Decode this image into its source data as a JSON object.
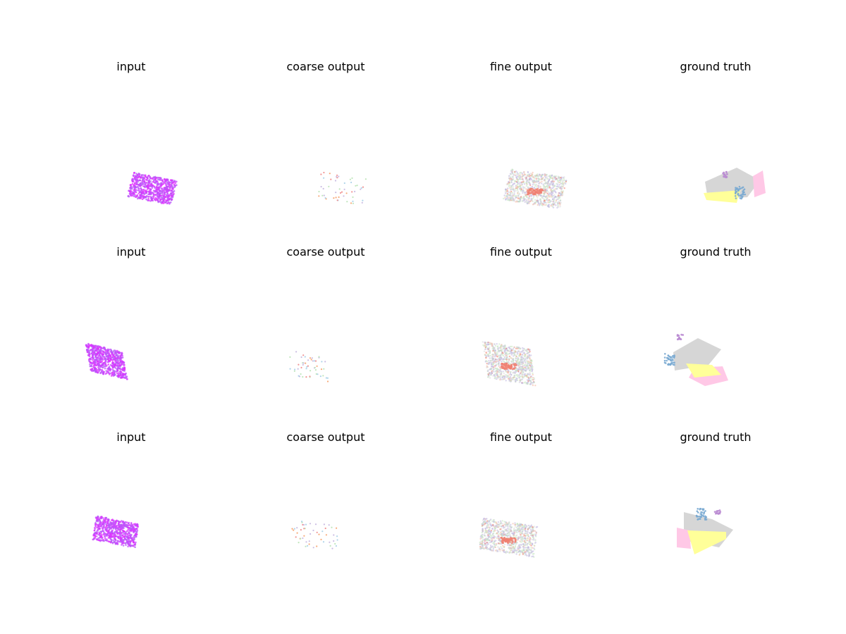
{
  "figure": {
    "rows": [
      {
        "panels": [
          {
            "title": "input",
            "kind": "input"
          },
          {
            "title": "coarse output",
            "kind": "coarse"
          },
          {
            "title": "fine output",
            "kind": "fine"
          },
          {
            "title": "ground truth",
            "kind": "truth"
          }
        ]
      },
      {
        "panels": [
          {
            "title": "input",
            "kind": "input"
          },
          {
            "title": "coarse output",
            "kind": "coarse"
          },
          {
            "title": "fine output",
            "kind": "fine"
          },
          {
            "title": "ground truth",
            "kind": "truth"
          }
        ]
      },
      {
        "panels": [
          {
            "title": "input",
            "kind": "input"
          },
          {
            "title": "coarse output",
            "kind": "coarse"
          },
          {
            "title": "fine output",
            "kind": "fine"
          },
          {
            "title": "ground truth",
            "kind": "truth"
          }
        ]
      }
    ],
    "colors": {
      "input": [
        "#e02cff",
        "#c64dff",
        "#b55cf5"
      ],
      "coarse": [
        "#f6a26b",
        "#f08a8a",
        "#a6cfe8",
        "#b9e3b5",
        "#c7b6e0"
      ],
      "fine": [
        "#bdb5e0",
        "#c4e6c0",
        "#d8d8d8",
        "#f08070",
        "#f4b8a0"
      ],
      "truth": {
        "gray": "#d6d6d6",
        "pink": "#ffc8e6",
        "yellow": "#ffff99",
        "blue": "#7aaad2",
        "purple": "#b98ad1"
      }
    }
  }
}
